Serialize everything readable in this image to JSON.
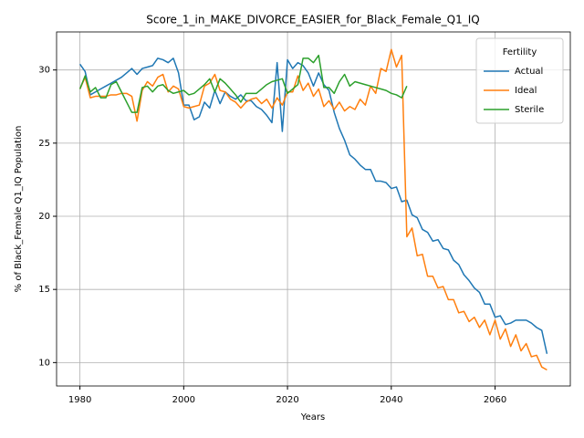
{
  "chart_data": {
    "type": "line",
    "title": "Score_1_in_MAKE_DIVORCE_EASIER_for_Black_Female_Q1_IQ",
    "x_label": "Years",
    "y_label": "% of Black_Female Q1_IQ Population",
    "legend_title": "Fertility",
    "legend_position": "upper right",
    "grid": true,
    "xlim": [
      1975.5,
      2074.5
    ],
    "ylim": [
      8.4,
      32.6
    ],
    "xticks": [
      1980,
      2000,
      2020,
      2040,
      2060
    ],
    "yticks": [
      10,
      15,
      20,
      25,
      30
    ],
    "x": [
      1980,
      1981,
      1982,
      1983,
      1984,
      1985,
      1986,
      1987,
      1988,
      1989,
      1990,
      1991,
      1992,
      1993,
      1994,
      1995,
      1996,
      1997,
      1998,
      1999,
      2000,
      2001,
      2002,
      2003,
      2004,
      2005,
      2006,
      2007,
      2008,
      2009,
      2010,
      2011,
      2012,
      2013,
      2014,
      2015,
      2016,
      2017,
      2018,
      2019,
      2020,
      2021,
      2022,
      2023,
      2024,
      2025,
      2026,
      2027,
      2028,
      2029,
      2030,
      2031,
      2032,
      2033,
      2034,
      2035,
      2036,
      2037,
      2038,
      2039,
      2040,
      2041,
      2042,
      2043,
      2044,
      2045,
      2046,
      2047,
      2048,
      2049,
      2050,
      2051,
      2052,
      2053,
      2054,
      2055,
      2056,
      2057,
      2058,
      2059,
      2060,
      2061,
      2062,
      2063,
      2064,
      2065,
      2066,
      2067,
      2068,
      2069,
      2070
    ],
    "series": [
      {
        "name": "Actual",
        "color": "#1f77b4",
        "values": [
          30.4,
          29.9,
          28.3,
          28.5,
          28.7,
          28.9,
          29.1,
          29.3,
          29.5,
          29.8,
          30.1,
          29.7,
          30.1,
          30.2,
          30.3,
          30.8,
          30.7,
          30.5,
          30.8,
          29.8,
          27.6,
          27.6,
          26.6,
          26.8,
          27.8,
          27.4,
          28.6,
          27.7,
          28.5,
          28.2,
          28.0,
          28.3,
          27.9,
          27.9,
          27.5,
          27.3,
          26.9,
          26.4,
          30.5,
          25.8,
          30.7,
          30.1,
          30.5,
          30.3,
          29.8,
          28.9,
          29.8,
          29.0,
          28.6,
          27.1,
          26.0,
          25.2,
          24.2,
          23.9,
          23.5,
          23.2,
          23.2,
          22.4,
          22.4,
          22.3,
          21.9,
          22.0,
          21.0,
          21.1,
          20.1,
          19.9,
          19.1,
          18.9,
          18.3,
          18.4,
          17.8,
          17.7,
          17.0,
          16.7,
          16.0,
          15.6,
          15.1,
          14.8,
          14.0,
          14.0,
          13.1,
          13.2,
          12.6,
          12.7,
          12.9,
          12.9,
          12.9,
          12.7,
          12.4,
          12.2,
          10.6
        ]
      },
      {
        "name": "Ideal",
        "color": "#ff7f0e",
        "values": [
          28.7,
          29.5,
          28.1,
          28.2,
          28.2,
          28.2,
          28.3,
          28.3,
          28.4,
          28.4,
          28.2,
          26.5,
          28.6,
          29.2,
          28.9,
          29.5,
          29.7,
          28.5,
          28.9,
          28.7,
          27.5,
          27.4,
          27.5,
          27.6,
          28.9,
          29.1,
          29.7,
          28.6,
          28.5,
          28.0,
          27.8,
          27.4,
          27.8,
          28.0,
          28.1,
          27.7,
          28.0,
          27.4,
          28.1,
          27.6,
          28.5,
          28.5,
          29.6,
          28.6,
          29.1,
          28.2,
          28.7,
          27.5,
          27.9,
          27.3,
          27.8,
          27.2,
          27.5,
          27.3,
          28.0,
          27.6,
          28.9,
          28.4,
          30.1,
          29.9,
          31.4,
          30.2,
          31.0,
          18.6,
          19.2,
          17.3,
          17.4,
          15.9,
          15.9,
          15.1,
          15.2,
          14.3,
          14.3,
          13.4,
          13.5,
          12.8,
          13.1,
          12.4,
          12.9,
          11.9,
          12.9,
          11.6,
          12.3,
          11.1,
          11.9,
          10.8,
          11.3,
          10.4,
          10.5,
          9.7,
          9.5
        ]
      },
      {
        "name": "Sterile",
        "color": "#2ca02c",
        "values": [
          28.7,
          29.6,
          28.5,
          28.8,
          28.1,
          28.1,
          29.0,
          29.2,
          28.5,
          27.8,
          27.1,
          27.1,
          28.8,
          28.9,
          28.5,
          28.9,
          29.0,
          28.6,
          28.4,
          28.5,
          28.6,
          28.3,
          28.4,
          28.7,
          29.0,
          29.4,
          28.5,
          29.4,
          29.1,
          28.7,
          28.3,
          27.8,
          28.4,
          28.4,
          28.4,
          28.7,
          29.0,
          29.2,
          29.3,
          29.4,
          28.4,
          28.7,
          29.0,
          30.8,
          30.8,
          30.5,
          31.0,
          28.8,
          28.8,
          28.4,
          29.2,
          29.7,
          28.9,
          29.2,
          29.1,
          29.0,
          28.9,
          28.8,
          28.7,
          28.6,
          28.4,
          28.3,
          28.1,
          28.9,
          null,
          null,
          null,
          null,
          null,
          null,
          null,
          null,
          null,
          null,
          null,
          null,
          null,
          null,
          null,
          null,
          null,
          null,
          null,
          null,
          null,
          null,
          null,
          null,
          null,
          null,
          null
        ]
      }
    ]
  }
}
